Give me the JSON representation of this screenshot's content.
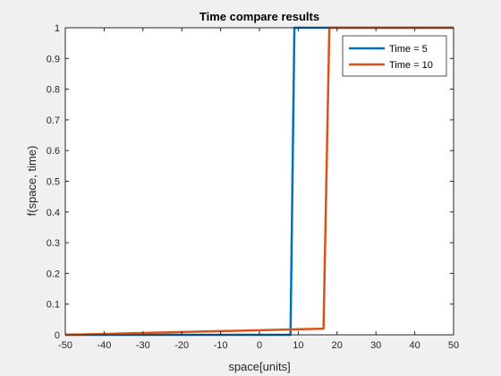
{
  "chart_data": {
    "type": "line",
    "title": "Time compare results",
    "xlabel": "space[units]",
    "ylabel": "f(space, time)",
    "xlim": [
      -50,
      50
    ],
    "ylim": [
      0,
      1
    ],
    "xticks": [
      -50,
      -40,
      -30,
      -20,
      -10,
      0,
      10,
      20,
      30,
      40,
      50
    ],
    "yticks": [
      0,
      0.1,
      0.2,
      0.3,
      0.4,
      0.5,
      0.6,
      0.7,
      0.8,
      0.9,
      1
    ],
    "grid": false,
    "legend_position": "top-right",
    "series": [
      {
        "name": "Time = 5",
        "color": "#0072BD",
        "x": [
          -50,
          8,
          9,
          50
        ],
        "y": [
          0,
          0,
          1,
          1
        ]
      },
      {
        "name": "Time = 10",
        "color": "#D95319",
        "x": [
          -50,
          16.5,
          18,
          50
        ],
        "y": [
          0,
          0.02,
          1,
          1
        ]
      }
    ]
  }
}
